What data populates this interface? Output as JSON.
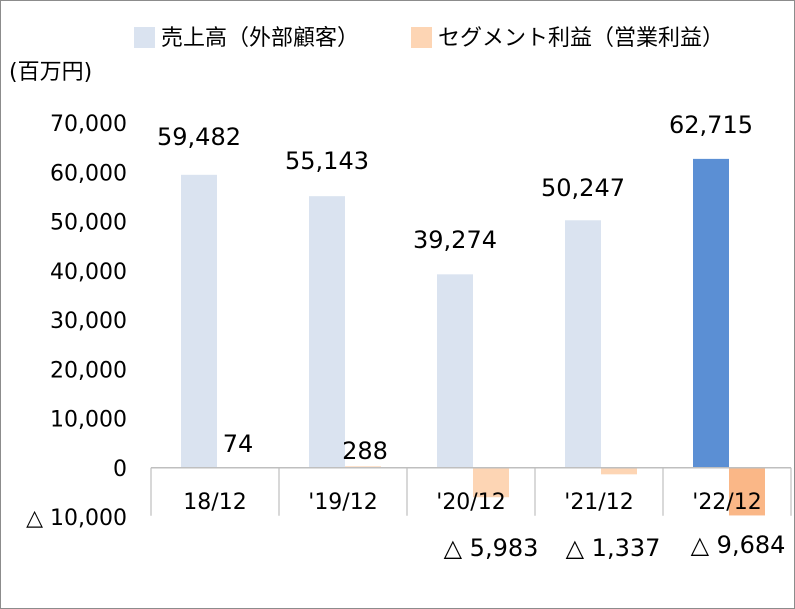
{
  "chart_data": {
    "type": "bar",
    "unit_label": "(百万円)",
    "categories": [
      "18/12",
      "'19/12",
      "'20/12",
      "'21/12",
      "'22/12"
    ],
    "series": [
      {
        "name": "売上高（外部顧客）",
        "values": [
          59482,
          55143,
          39274,
          50247,
          62715
        ],
        "color": "#dae3f0",
        "highlight_color": "#5b8fd4",
        "highlight_index": 4
      },
      {
        "name": "セグメント利益（営業利益）",
        "values": [
          74,
          288,
          -5983,
          -1337,
          -9684
        ],
        "color": "#fdd5b4",
        "highlight_color": "#fab787",
        "highlight_index": 4
      }
    ],
    "data_labels": {
      "sales": [
        "59,482",
        "55,143",
        "39,274",
        "50,247",
        "62,715"
      ],
      "profit": [
        "74",
        "288",
        "△ 5,983",
        "△ 1,337",
        "△ 9,684"
      ]
    },
    "y_ticks": [
      {
        "value": 70000,
        "label": "70,000"
      },
      {
        "value": 60000,
        "label": "60,000"
      },
      {
        "value": 50000,
        "label": "50,000"
      },
      {
        "value": 40000,
        "label": "40,000"
      },
      {
        "value": 30000,
        "label": "30,000"
      },
      {
        "value": 20000,
        "label": "20,000"
      },
      {
        "value": 10000,
        "label": "10,000"
      },
      {
        "value": 0,
        "label": "0"
      },
      {
        "value": -10000,
        "label": "△ 10,000"
      }
    ],
    "ylim": [
      -10000,
      70000
    ],
    "grid": false,
    "legend_position": "top"
  }
}
